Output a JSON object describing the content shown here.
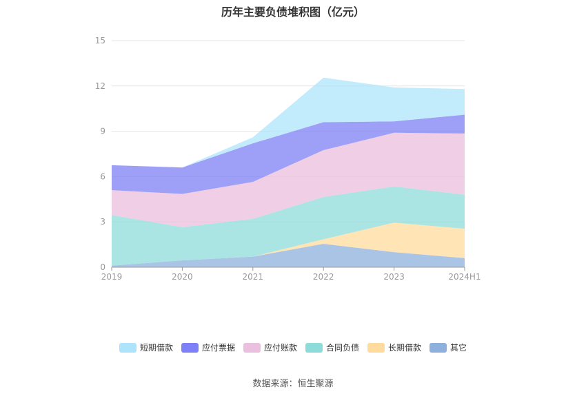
{
  "chart_data": {
    "type": "area",
    "stacked": true,
    "title": "历年主要负债堆积图（亿元）",
    "categories": [
      "2019",
      "2020",
      "2021",
      "2022",
      "2023",
      "2024H1"
    ],
    "ylim": [
      0,
      15
    ],
    "yticks": [
      "0",
      "3",
      "6",
      "9",
      "12",
      "15"
    ],
    "grid": true,
    "legend_position": "bottom",
    "series": [
      {
        "name": "其它",
        "color": "#8eb0dd",
        "values": [
          0.1,
          0.45,
          0.7,
          1.55,
          1.0,
          0.6
        ]
      },
      {
        "name": "长期借款",
        "color": "#ffdb9e",
        "values": [
          0.0,
          0.0,
          0.0,
          0.3,
          1.95,
          1.95
        ]
      },
      {
        "name": "合同负债",
        "color": "#8ddcda",
        "values": [
          3.35,
          2.2,
          2.5,
          2.8,
          2.4,
          2.25
        ]
      },
      {
        "name": "应付账款",
        "color": "#ebbfde",
        "values": [
          1.65,
          2.2,
          2.45,
          3.1,
          3.55,
          4.05
        ]
      },
      {
        "name": "应付票据",
        "color": "#7d80f6",
        "values": [
          1.65,
          1.75,
          2.55,
          1.85,
          0.75,
          1.25
        ]
      },
      {
        "name": "短期借款",
        "color": "#aee4fb",
        "values": [
          0.0,
          0.0,
          0.4,
          2.95,
          2.25,
          1.7
        ]
      }
    ]
  },
  "legend": [
    {
      "name": "短期借款",
      "color": "#aee4fb"
    },
    {
      "name": "应付票据",
      "color": "#7d80f6"
    },
    {
      "name": "应付账款",
      "color": "#ebbfde"
    },
    {
      "name": "合同负债",
      "color": "#8ddcda"
    },
    {
      "name": "长期借款",
      "color": "#ffdb9e"
    },
    {
      "name": "其它",
      "color": "#8eb0dd"
    }
  ],
  "source": "数据来源：恒生聚源"
}
